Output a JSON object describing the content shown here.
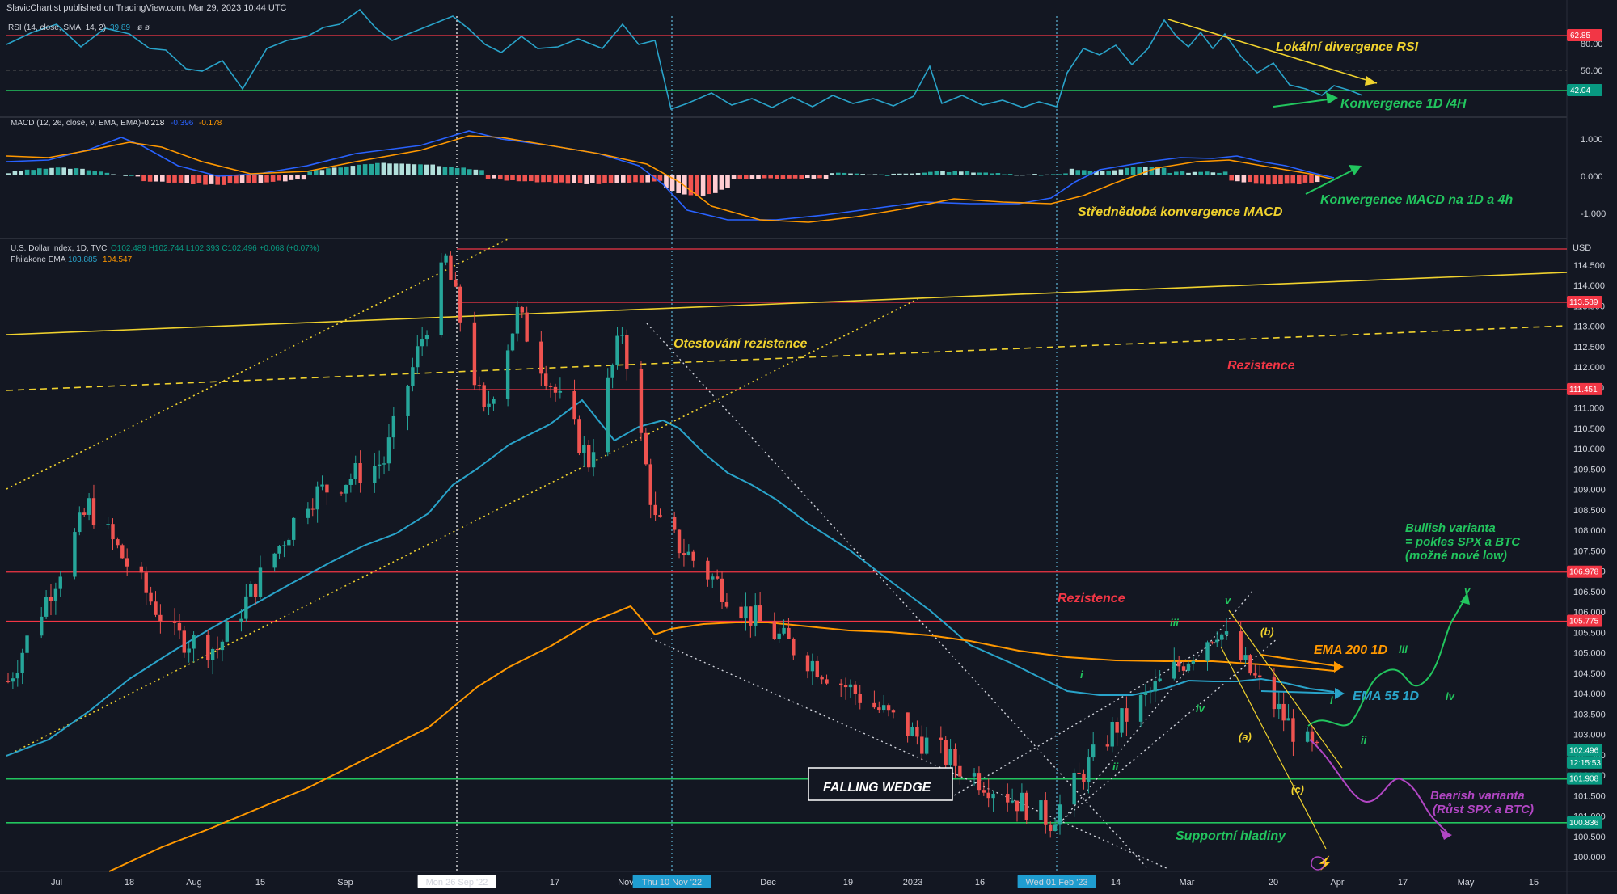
{
  "header": {
    "publisher": "SlavicChartist published on TradingView.com, Mar 29, 2023 10:44 UTC"
  },
  "rsi_panel": {
    "legend": "RSI (14, close, SMA, 14, 2)",
    "legend_value": "39.89",
    "legend_extra": "ø ø",
    "price_tags": [
      {
        "text": "62.85",
        "color": "#f23645"
      },
      {
        "text": "42.04",
        "color": "#089981"
      }
    ],
    "axis_labels": [
      "80.00",
      "50.00"
    ]
  },
  "macd_panel": {
    "legend": "MACD (12, 26, close, 9, EMA, EMA)",
    "values": [
      "-0.218",
      "-0.396",
      "-0.178"
    ],
    "axis_labels": [
      "1.000",
      "0.000",
      "-1.000"
    ]
  },
  "price_panel": {
    "symbol": "U.S. Dollar Index, 1D, TVC",
    "ohlc": "O102.489 H102.744 L102.393 C102.496 +0.068 (+0.07%)",
    "ema_legend": "Philakone EMA",
    "ema_values": [
      "103.885",
      "104.547"
    ],
    "currency": "USD",
    "price_labels": [
      "114.500",
      "114.000",
      "113.500",
      "113.000",
      "112.500",
      "112.000",
      "111.500",
      "111.000",
      "110.500",
      "110.000",
      "109.500",
      "109.000",
      "108.500",
      "108.000",
      "107.500",
      "107.000",
      "106.500",
      "106.000",
      "105.500",
      "105.000",
      "104.500",
      "104.000",
      "103.500",
      "103.000",
      "102.500",
      "102.000",
      "101.500",
      "101.000",
      "100.500",
      "100.000"
    ],
    "price_tags": [
      {
        "text": "113.589",
        "color": "#f23645"
      },
      {
        "text": "111.451",
        "color": "#f23645"
      },
      {
        "text": "106.978",
        "color": "#f23645"
      },
      {
        "text": "105.775",
        "color": "#f23645"
      },
      {
        "text": "102.496",
        "color": "#089981"
      },
      {
        "text": "12:15:53",
        "color": "#089981"
      },
      {
        "text": "101.908",
        "color": "#089981"
      },
      {
        "text": "100.836",
        "color": "#089981"
      }
    ]
  },
  "time_axis": {
    "labels": [
      "Jul",
      "18",
      "Aug",
      "15",
      "Sep",
      "Mon 26 Sep '22",
      "17",
      "Nov",
      "Thu 10 Nov '22",
      "Dec",
      "19",
      "2023",
      "16",
      "Wed 01 Feb '23",
      "14",
      "Mar",
      "20",
      "Apr",
      "17",
      "May",
      "15"
    ]
  },
  "annotations": {
    "lokalni_divergence": "Lokální divergence RSI",
    "konvergence_1d4h": "Konvergence 1D /4H",
    "konvergence_macd": "Konvergence MACD na 1D a 4h",
    "strednedoba": "Střednědobá konvergence MACD",
    "otestovani": "Otestování rezistence",
    "rezistence_1": "Rezistence",
    "rezistence_2": "Rezistence",
    "bullish_1": "Bullish varianta",
    "bullish_2": "= pokles SPX a BTC",
    "bullish_3": "(možné nové low)",
    "ema200": "EMA 200 1D",
    "ema55": "EMA 55 1D",
    "falling_wedge": "FALLING WEDGE",
    "bearish_1": "Bearish varianta",
    "bearish_2": "(Růst SPX a BTC)",
    "supportni": "Supportní hladiny",
    "wave_i": "i",
    "wave_ii": "ii",
    "wave_iii": "iii",
    "wave_iv": "iv",
    "wave_v": "v",
    "wave_a": "(a)",
    "wave_b": "(b)",
    "wave_c": "(c)"
  },
  "chart_data": {
    "type": "candlestick",
    "instrument": "U.S. Dollar Index, 1D, TVC",
    "x_range": [
      "2022-06-27",
      "2023-05-20"
    ],
    "ylim": [
      99.7,
      114.9
    ],
    "approx_closes": [
      {
        "x": "2022-06-27",
        "y": 104.3
      },
      {
        "x": "2022-07-14",
        "y": 108.6
      },
      {
        "x": "2022-08-01",
        "y": 105.4
      },
      {
        "x": "2022-08-10",
        "y": 105.1
      },
      {
        "x": "2022-08-29",
        "y": 108.8
      },
      {
        "x": "2022-09-14",
        "y": 109.7
      },
      {
        "x": "2022-09-27",
        "y": 114.6
      },
      {
        "x": "2022-10-05",
        "y": 110.8
      },
      {
        "x": "2022-10-12",
        "y": 113.3
      },
      {
        "x": "2022-10-27",
        "y": 109.7
      },
      {
        "x": "2022-11-03",
        "y": 112.9
      },
      {
        "x": "2022-11-10",
        "y": 108.2
      },
      {
        "x": "2022-11-30",
        "y": 105.9
      },
      {
        "x": "2022-12-15",
        "y": 104.6
      },
      {
        "x": "2023-01-13",
        "y": 102.2
      },
      {
        "x": "2023-02-01",
        "y": 100.9
      },
      {
        "x": "2023-02-14",
        "y": 103.1
      },
      {
        "x": "2023-03-08",
        "y": 105.6
      },
      {
        "x": "2023-03-24",
        "y": 103.1
      },
      {
        "x": "2023-03-29",
        "y": 102.496
      }
    ],
    "horizontal_levels": [
      113.589,
      111.451,
      106.978,
      105.775,
      101.908,
      100.836
    ]
  }
}
